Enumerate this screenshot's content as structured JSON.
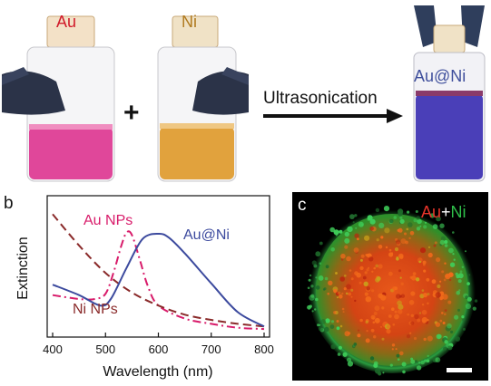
{
  "panel_a": {
    "letter": "a",
    "bottle_left_label": "Au",
    "bottle_middle_label": "Ni",
    "plus": "+",
    "arrow_text": "Ultrasonication",
    "bottle_right_label": "Au@Ni"
  },
  "panel_b": {
    "letter": "b",
    "ylabel": "Extinction",
    "xlabel": "Wavelength (nm)",
    "annotations": {
      "au": "Au NPs",
      "auni": "Au@Ni",
      "ni": "Ni NPs"
    }
  },
  "panel_c": {
    "letter": "c",
    "legend_au": "Au",
    "legend_plus": "+",
    "legend_ni": "Ni"
  },
  "colors": {
    "au": "#d81b6a",
    "ni": "#8a2a2a",
    "auni": "#3c4a9e",
    "gold_solution": "#e1a23d",
    "pink_solution": "#e0479a",
    "purple_solution": "#4a3fb8"
  },
  "chart_data": {
    "type": "line",
    "xlim": [
      400,
      800
    ],
    "ylim": [
      0,
      1
    ],
    "xticks": [
      400,
      500,
      600,
      700,
      800
    ],
    "yticks_visible": false,
    "grid": false,
    "series": [
      {
        "name": "Au NPs",
        "style": "dash-dot",
        "color": "#d81b6a",
        "x": [
          400,
          450,
          480,
          500,
          515,
          530,
          540,
          550,
          565,
          580,
          600,
          650,
          700,
          750,
          800
        ],
        "y": [
          0.28,
          0.25,
          0.25,
          0.29,
          0.45,
          0.66,
          0.76,
          0.74,
          0.55,
          0.35,
          0.2,
          0.1,
          0.06,
          0.03,
          0.02
        ]
      },
      {
        "name": "Ni NPs",
        "style": "dashed",
        "color": "#8a2a2a",
        "x": [
          400,
          450,
          500,
          550,
          600,
          650,
          700,
          750,
          800
        ],
        "y": [
          0.9,
          0.66,
          0.45,
          0.3,
          0.2,
          0.13,
          0.09,
          0.06,
          0.04
        ]
      },
      {
        "name": "Au@Ni",
        "style": "solid",
        "color": "#3c4a9e",
        "x": [
          400,
          450,
          490,
          510,
          540,
          570,
          600,
          620,
          650,
          700,
          750,
          800
        ],
        "y": [
          0.36,
          0.28,
          0.2,
          0.25,
          0.49,
          0.71,
          0.75,
          0.72,
          0.6,
          0.37,
          0.15,
          0.04
        ]
      }
    ]
  }
}
